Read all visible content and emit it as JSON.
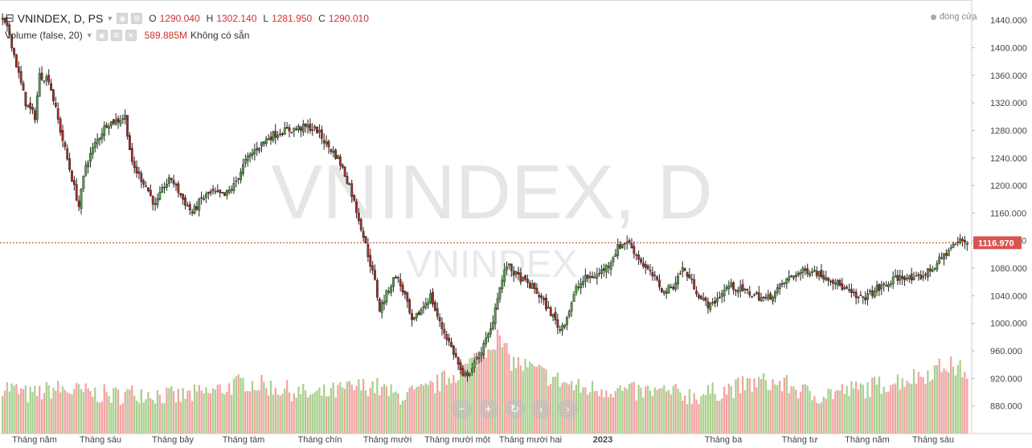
{
  "legend": {
    "symbol": "VNINDEX, D, PS",
    "ohlc": [
      {
        "key": "O",
        "value": "1290.040"
      },
      {
        "key": "H",
        "value": "1302.140"
      },
      {
        "key": "L",
        "value": "1281.950"
      },
      {
        "key": "C",
        "value": "1290.010"
      }
    ],
    "volume_title": "Volume (false, 20)",
    "volume_value": "589.885M",
    "volume_status": "Không có sẵn"
  },
  "status": {
    "dong_cua": "đóng cửa"
  },
  "watermark": {
    "main": "VNINDEX, D",
    "sub": "VNINDEX"
  },
  "last_price_label": "1116.970",
  "colors": {
    "up": "#26a69a",
    "down": "#ef5350",
    "candle_up": "#53a642",
    "candle_down": "#b22a22",
    "vol_up": "#a9d18e",
    "vol_down": "#f4a3a3",
    "price_line": "#c0392b"
  },
  "nav_icons": [
    "zoom-out-icon",
    "zoom-in-icon",
    "reset-icon",
    "plus-icon",
    "forward-icon"
  ],
  "chart_data": {
    "type": "candlestick",
    "y_axis": {
      "range": [
        840,
        1460
      ],
      "ticks": [
        "1440.000",
        "1400.000",
        "1360.000",
        "1320.000",
        "1280.000",
        "1240.000",
        "1200.000",
        "1160.000",
        "1120.000",
        "1080.000",
        "1040.000",
        "1000.000",
        "960.000",
        "920.000",
        "880.000"
      ]
    },
    "x_axis": {
      "tick_labels": [
        "Tháng năm",
        "Tháng sáu",
        "Tháng bảy",
        "Tháng tám",
        "Tháng chín",
        "Tháng mười",
        "Tháng mười một",
        "Tháng mười hai",
        "2023",
        "Tháng ba",
        "Tháng tư",
        "Tháng năm",
        "Tháng sáu"
      ]
    },
    "price_path": [
      [
        0,
        1440
      ],
      [
        3,
        1420
      ],
      [
        6,
        1375
      ],
      [
        10,
        1320
      ],
      [
        14,
        1300
      ],
      [
        16,
        1360
      ],
      [
        20,
        1355
      ],
      [
        25,
        1280
      ],
      [
        30,
        1210
      ],
      [
        33,
        1170
      ],
      [
        36,
        1230
      ],
      [
        40,
        1260
      ],
      [
        45,
        1290
      ],
      [
        50,
        1295
      ],
      [
        53,
        1300
      ],
      [
        56,
        1230
      ],
      [
        62,
        1200
      ],
      [
        66,
        1170
      ],
      [
        70,
        1200
      ],
      [
        73,
        1210
      ],
      [
        78,
        1180
      ],
      [
        82,
        1160
      ],
      [
        86,
        1180
      ],
      [
        90,
        1190
      ],
      [
        96,
        1185
      ],
      [
        100,
        1200
      ],
      [
        105,
        1235
      ],
      [
        110,
        1255
      ],
      [
        115,
        1270
      ],
      [
        120,
        1278
      ],
      [
        126,
        1282
      ],
      [
        132,
        1285
      ],
      [
        136,
        1280
      ],
      [
        140,
        1260
      ],
      [
        145,
        1240
      ],
      [
        150,
        1200
      ],
      [
        155,
        1140
      ],
      [
        158,
        1100
      ],
      [
        161,
        1060
      ],
      [
        163,
        1020
      ],
      [
        167,
        1050
      ],
      [
        170,
        1070
      ],
      [
        174,
        1040
      ],
      [
        177,
        1000
      ],
      [
        181,
        1020
      ],
      [
        185,
        1040
      ],
      [
        189,
        1000
      ],
      [
        192,
        980
      ],
      [
        196,
        950
      ],
      [
        199,
        920
      ],
      [
        203,
        935
      ],
      [
        207,
        960
      ],
      [
        211,
        990
      ],
      [
        214,
        1040
      ],
      [
        218,
        1085
      ],
      [
        222,
        1070
      ],
      [
        226,
        1060
      ],
      [
        230,
        1050
      ],
      [
        234,
        1030
      ],
      [
        238,
        1010
      ],
      [
        241,
        990
      ],
      [
        244,
        1010
      ],
      [
        248,
        1050
      ],
      [
        252,
        1065
      ],
      [
        257,
        1070
      ],
      [
        262,
        1085
      ],
      [
        266,
        1110
      ],
      [
        270,
        1120
      ],
      [
        274,
        1100
      ],
      [
        278,
        1080
      ],
      [
        282,
        1065
      ],
      [
        286,
        1045
      ],
      [
        290,
        1055
      ],
      [
        294,
        1080
      ],
      [
        298,
        1060
      ],
      [
        302,
        1035
      ],
      [
        306,
        1025
      ],
      [
        310,
        1040
      ],
      [
        314,
        1055
      ],
      [
        318,
        1050
      ],
      [
        322,
        1045
      ],
      [
        326,
        1040
      ],
      [
        330,
        1035
      ],
      [
        334,
        1045
      ],
      [
        338,
        1060
      ],
      [
        342,
        1070
      ],
      [
        346,
        1075
      ],
      [
        350,
        1078
      ],
      [
        354,
        1070
      ],
      [
        358,
        1065
      ],
      [
        362,
        1055
      ],
      [
        366,
        1045
      ],
      [
        370,
        1035
      ],
      [
        374,
        1040
      ],
      [
        378,
        1050
      ],
      [
        382,
        1055
      ],
      [
        386,
        1065
      ],
      [
        390,
        1068
      ],
      [
        394,
        1062
      ],
      [
        398,
        1070
      ],
      [
        402,
        1080
      ],
      [
        406,
        1095
      ],
      [
        410,
        1110
      ],
      [
        414,
        1120
      ],
      [
        417,
        1117
      ]
    ],
    "volume_path": [
      [
        0,
        910
      ],
      [
        12,
        895
      ],
      [
        22,
        905
      ],
      [
        35,
        900
      ],
      [
        48,
        895
      ],
      [
        60,
        900
      ],
      [
        75,
        893
      ],
      [
        90,
        900
      ],
      [
        105,
        915
      ],
      [
        120,
        905
      ],
      [
        135,
        895
      ],
      [
        150,
        905
      ],
      [
        160,
        910
      ],
      [
        170,
        895
      ],
      [
        182,
        900
      ],
      [
        192,
        920
      ],
      [
        200,
        935
      ],
      [
        208,
        960
      ],
      [
        214,
        980
      ],
      [
        220,
        945
      ],
      [
        228,
        935
      ],
      [
        238,
        920
      ],
      [
        250,
        905
      ],
      [
        262,
        905
      ],
      [
        272,
        900
      ],
      [
        285,
        900
      ],
      [
        300,
        895
      ],
      [
        315,
        905
      ],
      [
        328,
        915
      ],
      [
        340,
        910
      ],
      [
        350,
        895
      ],
      [
        360,
        900
      ],
      [
        372,
        905
      ],
      [
        385,
        915
      ],
      [
        398,
        925
      ],
      [
        408,
        940
      ],
      [
        417,
        930
      ]
    ],
    "num_bars": 418,
    "last_price": 1116.97
  }
}
